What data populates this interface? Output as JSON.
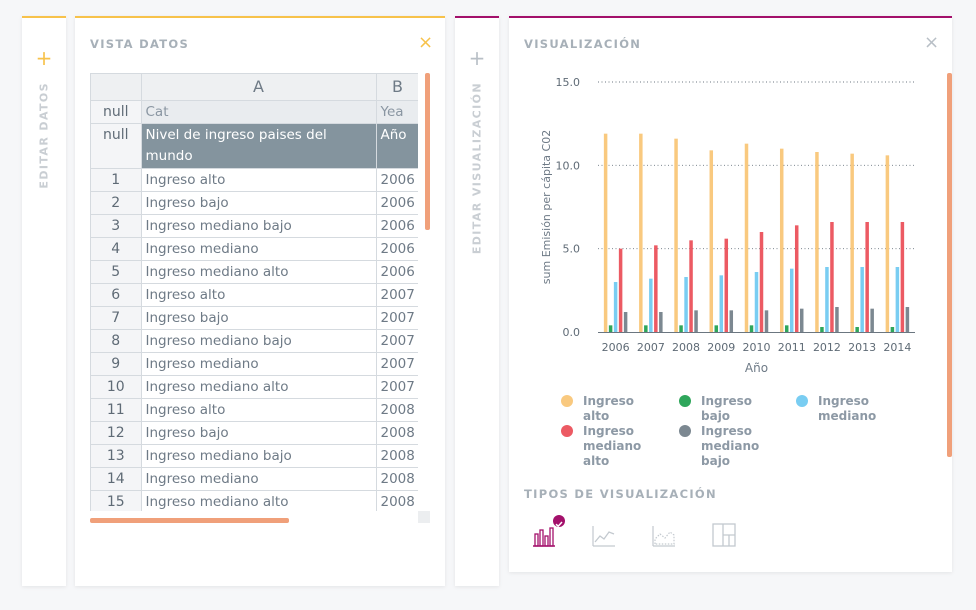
{
  "colors": {
    "accent_orange": "#f7c24b",
    "accent_purple": "#a3106b",
    "scroll": "#f0a07a"
  },
  "left_strip": {
    "plus": "+",
    "label": "EDITAR DATOS"
  },
  "data_panel": {
    "title": "VISTA DATOS",
    "close": "×",
    "columns": [
      "A",
      "B"
    ],
    "key_row": {
      "header": "null",
      "cells": [
        "Cat",
        "Yea"
      ]
    },
    "title_row": {
      "header": "null",
      "cells": [
        "Nivel de ingreso paises del mundo",
        "Año"
      ]
    },
    "rows": [
      {
        "n": "1",
        "cat": "Ingreso alto",
        "year": "2006"
      },
      {
        "n": "2",
        "cat": "Ingreso bajo",
        "year": "2006"
      },
      {
        "n": "3",
        "cat": "Ingreso mediano bajo",
        "year": "2006"
      },
      {
        "n": "4",
        "cat": "Ingreso mediano",
        "year": "2006"
      },
      {
        "n": "5",
        "cat": "Ingreso mediano alto",
        "year": "2006"
      },
      {
        "n": "6",
        "cat": "Ingreso alto",
        "year": "2007"
      },
      {
        "n": "7",
        "cat": "Ingreso bajo",
        "year": "2007"
      },
      {
        "n": "8",
        "cat": "Ingreso mediano bajo",
        "year": "2007"
      },
      {
        "n": "9",
        "cat": "Ingreso mediano",
        "year": "2007"
      },
      {
        "n": "10",
        "cat": "Ingreso mediano alto",
        "year": "2007"
      },
      {
        "n": "11",
        "cat": "Ingreso alto",
        "year": "2008"
      },
      {
        "n": "12",
        "cat": "Ingreso bajo",
        "year": "2008"
      },
      {
        "n": "13",
        "cat": "Ingreso mediano bajo",
        "year": "2008"
      },
      {
        "n": "14",
        "cat": "Ingreso mediano",
        "year": "2008"
      },
      {
        "n": "15",
        "cat": "Ingreso mediano alto",
        "year": "2008"
      }
    ]
  },
  "mid_strip": {
    "plus": "+",
    "label": "EDITAR VISUALIZACIÓN"
  },
  "viz_panel": {
    "title": "VISUALIZACIÓN",
    "close": "×",
    "types_title": "TIPOS DE VISUALIZACIÓN",
    "types": [
      "bar-chart-icon",
      "line-chart-icon",
      "area-chart-icon",
      "treemap-icon"
    ],
    "selected_type": "bar-chart-icon"
  },
  "chart_data": {
    "type": "bar",
    "title": "",
    "xlabel": "Año",
    "ylabel": "sum Emisión per cápita C02",
    "ylim": [
      0,
      15
    ],
    "yticks": [
      "0.0",
      "5.0",
      "10.0",
      "15.0"
    ],
    "categories": [
      "2006",
      "2007",
      "2008",
      "2009",
      "2010",
      "2011",
      "2012",
      "2013",
      "2014"
    ],
    "series": [
      {
        "name": "Ingreso alto",
        "color": "#f9c97f",
        "values": [
          11.9,
          11.9,
          11.6,
          10.9,
          11.3,
          11.0,
          10.8,
          10.7,
          10.6
        ]
      },
      {
        "name": "Ingreso bajo",
        "color": "#2fa65b",
        "values": [
          0.4,
          0.4,
          0.4,
          0.4,
          0.4,
          0.4,
          0.3,
          0.3,
          0.3
        ]
      },
      {
        "name": "Ingreso mediano",
        "color": "#79cdf2",
        "values": [
          3.0,
          3.2,
          3.3,
          3.4,
          3.6,
          3.8,
          3.9,
          3.9,
          3.9
        ]
      },
      {
        "name": "Ingreso mediano alto",
        "color": "#ec5a63",
        "values": [
          5.0,
          5.2,
          5.5,
          5.6,
          6.0,
          6.4,
          6.6,
          6.6,
          6.6
        ]
      },
      {
        "name": "Ingreso mediano bajo",
        "color": "#7c8891",
        "values": [
          1.2,
          1.2,
          1.3,
          1.3,
          1.3,
          1.4,
          1.5,
          1.4,
          1.5
        ]
      }
    ],
    "legend": [
      {
        "name": "Ingreso alto",
        "color": "#f9c97f",
        "line1": "Ingreso alto",
        "line2": ""
      },
      {
        "name": "Ingreso bajo",
        "color": "#2fa65b",
        "line1": "Ingreso bajo",
        "line2": ""
      },
      {
        "name": "Ingreso mediano",
        "color": "#79cdf2",
        "line1": "Ingreso",
        "line2": "mediano"
      },
      {
        "name": "Ingreso mediano alto",
        "color": "#ec5a63",
        "line1": "Ingreso",
        "line2": "mediano alto"
      },
      {
        "name": "Ingreso mediano bajo",
        "color": "#7c8891",
        "line1": "Ingreso",
        "line2": "mediano bajo"
      }
    ]
  }
}
